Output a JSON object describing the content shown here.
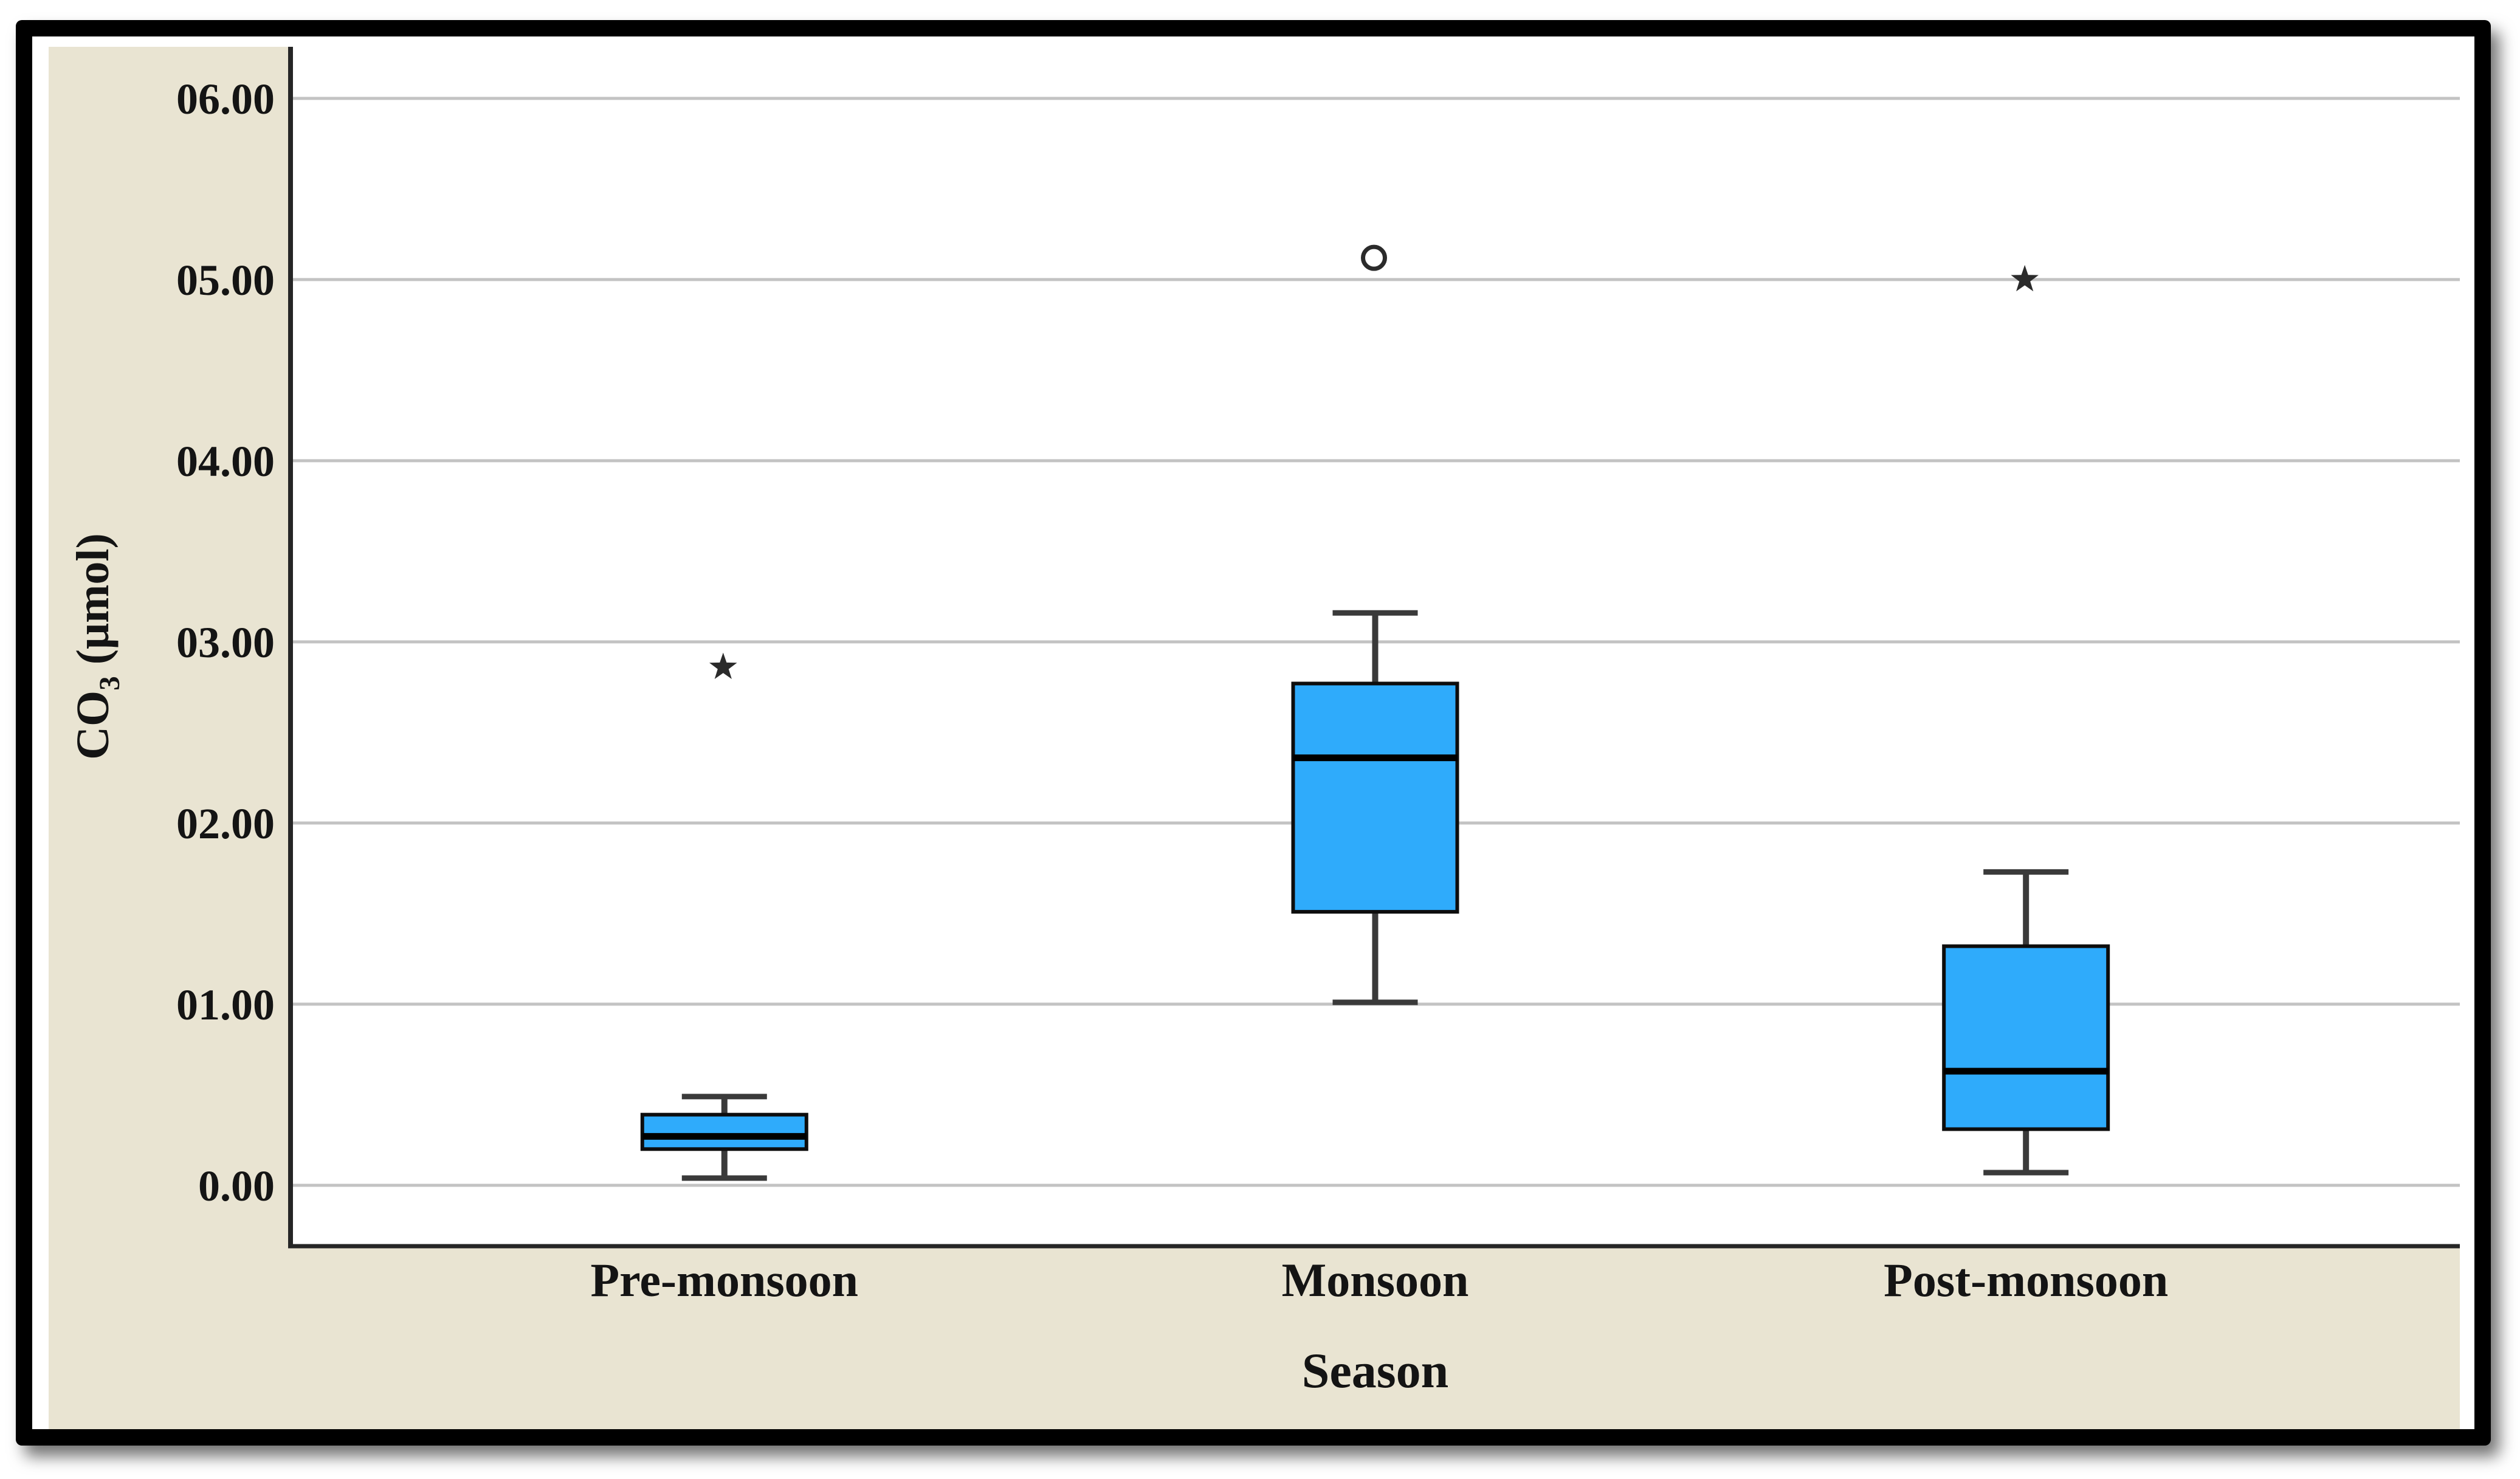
{
  "chart_data": {
    "type": "boxplot",
    "title": "",
    "xlabel": "Season",
    "ylabel": "CO₃ (μmol)",
    "ylabel_parts": {
      "prefix": "CO",
      "subscript": "3",
      "suffix": " (μmol)"
    },
    "ylim": [
      -0.336,
      6.285
    ],
    "grid": true,
    "legend_position": "none",
    "yticks": [
      {
        "label": "06.00",
        "value": 6
      },
      {
        "label": "05.00",
        "value": 5
      },
      {
        "label": "04.00",
        "value": 4
      },
      {
        "label": "03.00",
        "value": 3
      },
      {
        "label": "02.00",
        "value": 2
      },
      {
        "label": "01.00",
        "value": 1
      },
      {
        "label": "0.00",
        "value": 0
      }
    ],
    "categories": [
      "Pre-monsoon",
      "Monsoon",
      "Post-monsoon"
    ],
    "boxes": [
      {
        "category": "Pre-monsoon",
        "whisker_low": 0.04,
        "q1": 0.2,
        "median": 0.27,
        "q3": 0.39,
        "whisker_high": 0.49,
        "outliers": [
          {
            "value": 2.86,
            "marker": "star"
          }
        ]
      },
      {
        "category": "Monsoon",
        "whisker_low": 1.01,
        "q1": 1.51,
        "median": 2.36,
        "q3": 2.77,
        "whisker_high": 3.16,
        "outliers": [
          {
            "value": 5.12,
            "marker": "circle"
          }
        ]
      },
      {
        "category": "Post-monsoon",
        "whisker_low": 0.07,
        "q1": 0.31,
        "median": 0.63,
        "q3": 1.32,
        "whisker_high": 1.73,
        "outliers": [
          {
            "value": 5.0,
            "marker": "star"
          }
        ]
      }
    ],
    "colors": {
      "box_fill": "#2FABFB",
      "box_stroke": "#0d0d0d",
      "median": "#000000",
      "whisker": "#3a3a3a",
      "gridline": "#c3c3c3",
      "panel_bg": "#E9E4D2",
      "plot_bg": "#ffffff",
      "frame": "#000000",
      "text": "#141414",
      "outlier": "#2b2b2b"
    }
  }
}
